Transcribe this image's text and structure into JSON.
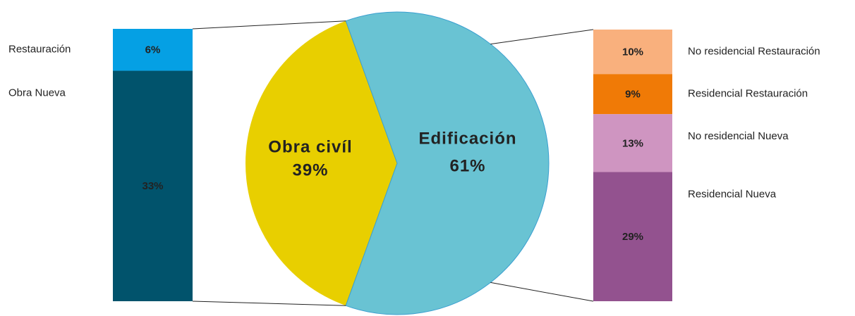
{
  "chart_data": [
    {
      "type": "pie",
      "categories": [
        "Obra civíl",
        "Edificación"
      ],
      "values": [
        39,
        61
      ],
      "value_labels": [
        "39%",
        "61%"
      ],
      "colors": [
        "#e8cf00",
        "#69c3d3"
      ]
    },
    {
      "type": "stacked_bar",
      "series": [
        {
          "name": "Restauración",
          "color": "#05a0e4",
          "values": [
            6
          ],
          "value_labels": [
            "6%"
          ]
        },
        {
          "name": "Obra Nueva",
          "color": "#01536c",
          "values": [
            33
          ],
          "value_labels": [
            "33%"
          ]
        }
      ]
    },
    {
      "type": "stacked_bar",
      "series": [
        {
          "name": "No residencial Restauración",
          "color": "#f9b07d",
          "values": [
            10
          ],
          "value_labels": [
            "10%"
          ]
        },
        {
          "name": "Residencial Restauración",
          "color": "#f07a06",
          "values": [
            9
          ],
          "value_labels": [
            "9%"
          ]
        },
        {
          "name": "No residencial Nueva",
          "color": "#cf95c1",
          "values": [
            13
          ],
          "value_labels": [
            "13%"
          ]
        },
        {
          "name": "Residencial Nueva",
          "color": "#93528f",
          "values": [
            29
          ],
          "value_labels": [
            "29%"
          ]
        }
      ]
    }
  ]
}
